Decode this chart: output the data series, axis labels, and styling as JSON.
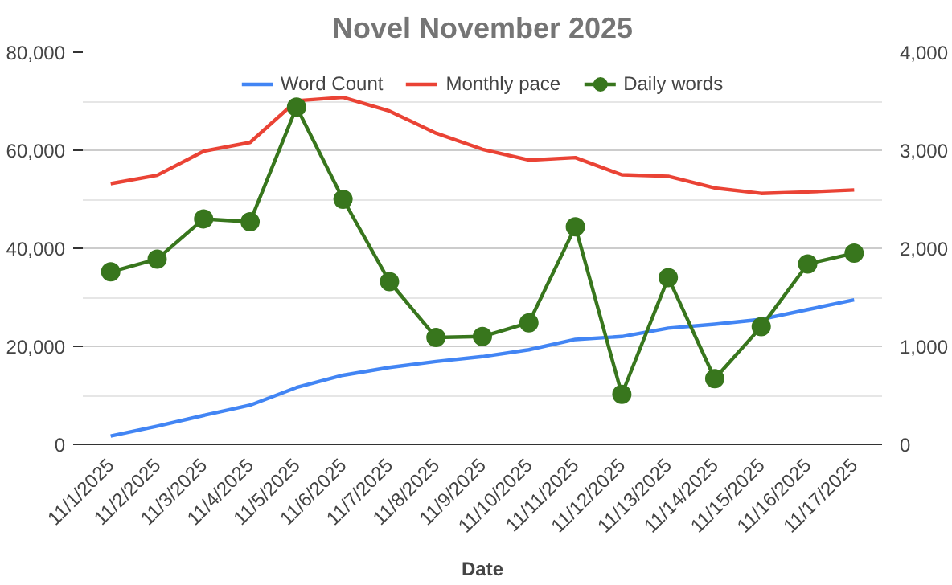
{
  "chart_data": {
    "type": "line",
    "title": "Novel November 2025",
    "xlabel": "Date",
    "categories": [
      "11/1/2025",
      "11/2/2025",
      "11/3/2025",
      "11/4/2025",
      "11/5/2025",
      "11/6/2025",
      "11/7/2025",
      "11/8/2025",
      "11/9/2025",
      "11/10/2025",
      "11/11/2025",
      "11/12/2025",
      "11/13/2025",
      "11/14/2025",
      "11/15/2025",
      "11/16/2025",
      "11/17/2025"
    ],
    "series": [
      {
        "name": "Word Count",
        "color": "#4285f4",
        "marker": "none",
        "values": [
          1700,
          3700,
          5900,
          8000,
          11600,
          14100,
          15700,
          16900,
          17900,
          19300,
          21400,
          22000,
          23700,
          24500,
          25500,
          27500,
          29500
        ]
      },
      {
        "name": "Monthly pace",
        "color": "#ea4335",
        "marker": "none",
        "values": [
          53200,
          54900,
          59800,
          61600,
          70100,
          70800,
          68000,
          63500,
          60200,
          58000,
          58500,
          55000,
          54700,
          52300,
          51200,
          51500,
          51900
        ]
      },
      {
        "name": "Daily words",
        "color": "#38761d",
        "marker": "circle",
        "axis": "y2",
        "values": [
          1760,
          1890,
          2300,
          2270,
          3440,
          2500,
          1660,
          1090,
          1100,
          1240,
          2220,
          510,
          1700,
          670,
          1200,
          1840,
          1950
        ]
      }
    ],
    "ylim": [
      0,
      80000
    ],
    "yticks": [
      {
        "value": 0,
        "label": "0"
      },
      {
        "value": 10000,
        "label": null
      },
      {
        "value": 20000,
        "label": "20,000"
      },
      {
        "value": 30000,
        "label": null
      },
      {
        "value": 40000,
        "label": "40,000"
      },
      {
        "value": 50000,
        "label": null
      },
      {
        "value": 60000,
        "label": "60,000"
      },
      {
        "value": 70000,
        "label": null
      },
      {
        "value": 80000,
        "label": "80,000"
      }
    ],
    "y2lim": [
      0,
      4000
    ],
    "y2ticks": [
      {
        "value": 0,
        "label": "0"
      },
      {
        "value": 1000,
        "label": "1,000"
      },
      {
        "value": 2000,
        "label": "2,000"
      },
      {
        "value": 3000,
        "label": "3,000"
      },
      {
        "value": 4000,
        "label": "4,000"
      }
    ],
    "grid": "y",
    "legend": "top"
  }
}
